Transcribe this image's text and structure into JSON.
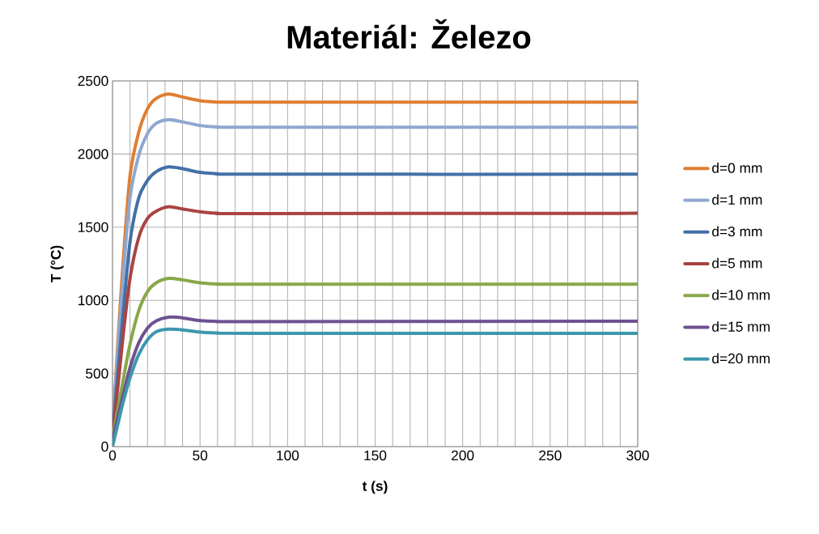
{
  "chart_data": {
    "type": "line",
    "title": "Materiál: Železo",
    "xlabel": "t (s)",
    "ylabel": "T (°C)",
    "x": [
      0,
      3,
      6,
      10,
      15,
      20,
      25,
      32,
      40,
      50,
      60,
      80,
      300
    ],
    "series": [
      {
        "name": "d=0 mm",
        "color": "#e07e31",
        "values": [
          100,
          700,
          1250,
          1850,
          2150,
          2310,
          2380,
          2410,
          2390,
          2365,
          2355,
          2355,
          2355
        ]
      },
      {
        "name": "d=1 mm",
        "color": "#8fa8d0",
        "values": [
          100,
          650,
          1150,
          1700,
          1990,
          2140,
          2210,
          2235,
          2220,
          2195,
          2185,
          2183,
          2183
        ]
      },
      {
        "name": "d=3 mm",
        "color": "#4470a8",
        "values": [
          90,
          500,
          900,
          1400,
          1700,
          1820,
          1880,
          1912,
          1900,
          1875,
          1865,
          1862,
          1862
        ]
      },
      {
        "name": "d=5 mm",
        "color": "#a94442",
        "values": [
          80,
          400,
          750,
          1150,
          1430,
          1560,
          1610,
          1640,
          1625,
          1605,
          1595,
          1593,
          1595
        ]
      },
      {
        "name": "d=10 mm",
        "color": "#88a84a",
        "values": [
          60,
          250,
          450,
          700,
          930,
          1060,
          1120,
          1150,
          1140,
          1120,
          1112,
          1110,
          1110
        ]
      },
      {
        "name": "d=15 mm",
        "color": "#6d5290",
        "values": [
          40,
          200,
          350,
          540,
          710,
          810,
          860,
          885,
          880,
          862,
          856,
          855,
          857
        ]
      },
      {
        "name": "d=20 mm",
        "color": "#3d97ae",
        "values": [
          0,
          150,
          300,
          470,
          630,
          730,
          785,
          803,
          798,
          782,
          777,
          775,
          775
        ]
      }
    ],
    "xlim": [
      0,
      300
    ],
    "ylim": [
      0,
      2500
    ],
    "xticks": [
      0,
      {
        "value": 10,
        "label": null
      },
      {
        "value": 20,
        "label": null
      },
      {
        "value": 30,
        "label": null
      },
      {
        "value": 40,
        "label": null
      },
      50,
      {
        "value": 60,
        "label": null
      },
      {
        "value": 70,
        "label": null
      },
      {
        "value": 80,
        "label": null
      },
      {
        "value": 90,
        "label": null
      },
      100,
      {
        "value": 110,
        "label": null
      },
      {
        "value": 120,
        "label": null
      },
      {
        "value": 130,
        "label": null
      },
      {
        "value": 140,
        "label": null
      },
      150,
      {
        "value": 160,
        "label": null
      },
      {
        "value": 170,
        "label": null
      },
      {
        "value": 180,
        "label": null
      },
      {
        "value": 190,
        "label": null
      },
      200,
      {
        "value": 210,
        "label": null
      },
      {
        "value": 220,
        "label": null
      },
      {
        "value": 230,
        "label": null
      },
      {
        "value": 240,
        "label": null
      },
      250,
      {
        "value": 260,
        "label": null
      },
      {
        "value": 270,
        "label": null
      },
      {
        "value": 280,
        "label": null
      },
      {
        "value": 290,
        "label": null
      },
      300
    ],
    "yticks": [
      0,
      500,
      1000,
      1500,
      2000,
      2500
    ],
    "grid": true,
    "legend": "right",
    "line_style": "solid"
  }
}
